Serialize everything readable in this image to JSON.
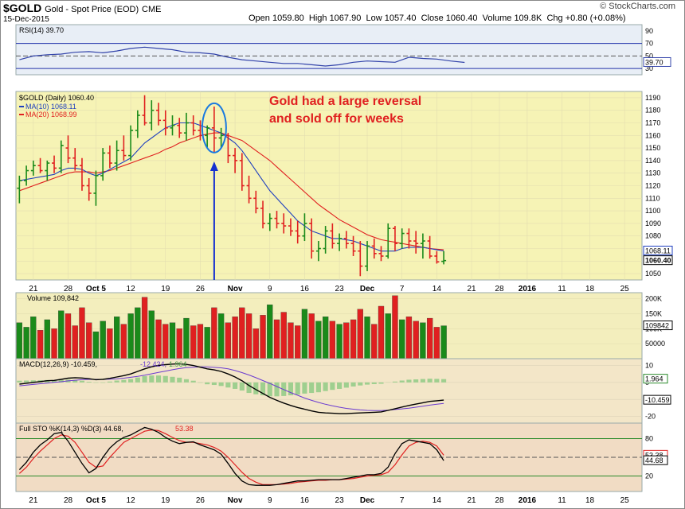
{
  "header": {
    "symbol": "$GOLD",
    "name": "Gold - Spot Price (EOD)",
    "exchange": "CME",
    "date": "15-Dec-2015",
    "brand": "© StockCharts.com",
    "ohlc": [
      {
        "label": "Open",
        "value": "1059.80"
      },
      {
        "label": "High",
        "value": "1067.90"
      },
      {
        "label": "Low",
        "value": "1057.40"
      },
      {
        "label": "Close",
        "value": "1060.40"
      },
      {
        "label": "Volume",
        "value": "109.8K"
      },
      {
        "label": "Chg",
        "value": "+0.80 (+0.08%)"
      }
    ]
  },
  "annotation": {
    "lines": [
      "Gold had a large reversal",
      "and sold off for weeks"
    ],
    "color": "#e02020"
  },
  "colors": {
    "up": "#1a8a1a",
    "down": "#e02020",
    "ma10": "#1f3fbf",
    "ma20": "#e02020",
    "price_bg": "#f6f3b5",
    "volume_bg": "#f3eebd",
    "macd_bg": "#f3e6c8",
    "sto_bg": "#f1dcc4",
    "rsi_bg": "#e8eef6",
    "arrow": "#1530d0"
  },
  "chart_data": [
    {
      "type": "line",
      "panel": "rsi",
      "legend": "RSI(14) 39.70",
      "ylim": [
        20,
        100
      ],
      "ticks": [
        90,
        70,
        50,
        30
      ],
      "last_label": "39.70",
      "x": [
        0,
        2,
        4,
        6,
        8,
        10,
        12,
        14,
        16,
        18,
        20,
        22,
        24,
        26,
        28,
        30,
        32,
        34,
        36,
        38,
        40,
        42,
        44,
        46,
        48,
        50,
        52,
        54,
        56,
        58,
        60,
        62,
        64
      ],
      "values": [
        44,
        50,
        52,
        53,
        56,
        57,
        55,
        58,
        62,
        64,
        62,
        60,
        56,
        55,
        53,
        48,
        44,
        42,
        40,
        38,
        38,
        36,
        34,
        36,
        40,
        42,
        41,
        40,
        48,
        46,
        45,
        42,
        39.7
      ]
    },
    {
      "type": "bar",
      "panel": "price",
      "legend": [
        "$GOLD (Daily) 1060.40",
        "MA(10) 1068.11",
        "MA(20) 1068.99"
      ],
      "ylim": [
        1045,
        1195
      ],
      "ticks": [
        1190,
        1180,
        1170,
        1160,
        1150,
        1140,
        1130,
        1120,
        1110,
        1100,
        1090,
        1080,
        1070,
        1060,
        1050
      ],
      "last_labels": [
        "1068.11",
        "1060.40"
      ],
      "x_ticks": [
        {
          "i": 2,
          "label": "21"
        },
        {
          "i": 7,
          "label": "28"
        },
        {
          "i": 11,
          "label": "Oct 5"
        },
        {
          "i": 16,
          "label": "12"
        },
        {
          "i": 21,
          "label": "19"
        },
        {
          "i": 26,
          "label": "26"
        },
        {
          "i": 31,
          "label": "Nov"
        },
        {
          "i": 36,
          "label": "9"
        },
        {
          "i": 41,
          "label": "16"
        },
        {
          "i": 46,
          "label": "23"
        },
        {
          "i": 50,
          "label": "Dec"
        },
        {
          "i": 55,
          "label": "7"
        },
        {
          "i": 60,
          "label": "14"
        },
        {
          "i": 65,
          "label": "21"
        },
        {
          "i": 69,
          "label": "28"
        },
        {
          "i": 73,
          "label": "2016"
        },
        {
          "i": 78,
          "label": "11"
        },
        {
          "i": 82,
          "label": "18"
        },
        {
          "i": 87,
          "label": "25"
        }
      ],
      "ohlc": [
        [
          1118,
          1128,
          1106,
          1124
        ],
        [
          1124,
          1136,
          1120,
          1132
        ],
        [
          1132,
          1140,
          1128,
          1136
        ],
        [
          1136,
          1142,
          1130,
          1132
        ],
        [
          1132,
          1140,
          1124,
          1138
        ],
        [
          1138,
          1144,
          1130,
          1134
        ],
        [
          1134,
          1156,
          1130,
          1152
        ],
        [
          1150,
          1160,
          1138,
          1142
        ],
        [
          1142,
          1150,
          1132,
          1136
        ],
        [
          1136,
          1142,
          1116,
          1120
        ],
        [
          1120,
          1126,
          1108,
          1114
        ],
        [
          1114,
          1132,
          1104,
          1128
        ],
        [
          1128,
          1150,
          1124,
          1146
        ],
        [
          1146,
          1152,
          1134,
          1138
        ],
        [
          1138,
          1156,
          1132,
          1148
        ],
        [
          1148,
          1160,
          1140,
          1144
        ],
        [
          1144,
          1168,
          1140,
          1164
        ],
        [
          1164,
          1180,
          1158,
          1176
        ],
        [
          1176,
          1192,
          1168,
          1170
        ],
        [
          1170,
          1188,
          1164,
          1180
        ],
        [
          1180,
          1186,
          1168,
          1172
        ],
        [
          1172,
          1180,
          1160,
          1166
        ],
        [
          1166,
          1176,
          1160,
          1168
        ],
        [
          1168,
          1174,
          1158,
          1162
        ],
        [
          1162,
          1178,
          1156,
          1170
        ],
        [
          1170,
          1176,
          1160,
          1164
        ],
        [
          1164,
          1172,
          1156,
          1160
        ],
        [
          1160,
          1168,
          1150,
          1166
        ],
        [
          1166,
          1183,
          1146,
          1158
        ],
        [
          1158,
          1166,
          1150,
          1160
        ],
        [
          1160,
          1162,
          1138,
          1144
        ],
        [
          1144,
          1150,
          1130,
          1140
        ],
        [
          1140,
          1146,
          1116,
          1120
        ],
        [
          1120,
          1128,
          1106,
          1110
        ],
        [
          1110,
          1116,
          1098,
          1102
        ],
        [
          1102,
          1108,
          1086,
          1090
        ],
        [
          1090,
          1098,
          1084,
          1094
        ],
        [
          1094,
          1100,
          1086,
          1090
        ],
        [
          1090,
          1098,
          1082,
          1088
        ],
        [
          1088,
          1094,
          1080,
          1084
        ],
        [
          1084,
          1092,
          1074,
          1080
        ],
        [
          1080,
          1098,
          1076,
          1090
        ],
        [
          1090,
          1094,
          1062,
          1068
        ],
        [
          1068,
          1076,
          1060,
          1070
        ],
        [
          1070,
          1088,
          1066,
          1084
        ],
        [
          1084,
          1090,
          1070,
          1074
        ],
        [
          1074,
          1082,
          1068,
          1078
        ],
        [
          1078,
          1084,
          1070,
          1074
        ],
        [
          1074,
          1080,
          1064,
          1068
        ],
        [
          1068,
          1076,
          1048,
          1056
        ],
        [
          1056,
          1076,
          1052,
          1072
        ],
        [
          1072,
          1078,
          1062,
          1066
        ],
        [
          1066,
          1072,
          1060,
          1064
        ],
        [
          1064,
          1090,
          1062,
          1086
        ],
        [
          1086,
          1088,
          1068,
          1074
        ],
        [
          1074,
          1086,
          1070,
          1082
        ],
        [
          1082,
          1086,
          1070,
          1076
        ],
        [
          1076,
          1084,
          1066,
          1074
        ],
        [
          1074,
          1082,
          1062,
          1076
        ],
        [
          1076,
          1080,
          1062,
          1064
        ],
        [
          1064,
          1068,
          1058,
          1059.4
        ],
        [
          1059.8,
          1067.9,
          1057.4,
          1060.4
        ]
      ],
      "ma10": [
        1124,
        1125,
        1126,
        1127,
        1128,
        1129,
        1132,
        1134,
        1134,
        1133,
        1130,
        1128,
        1130,
        1133,
        1136,
        1139,
        1142,
        1148,
        1154,
        1158,
        1162,
        1166,
        1168,
        1170,
        1170,
        1170,
        1168,
        1166,
        1164,
        1162,
        1158,
        1154,
        1148,
        1140,
        1132,
        1124,
        1116,
        1110,
        1104,
        1098,
        1092,
        1088,
        1084,
        1082,
        1080,
        1078,
        1078,
        1077,
        1076,
        1074,
        1072,
        1070,
        1068,
        1068,
        1068,
        1070,
        1071,
        1071,
        1071,
        1070,
        1069,
        1068.11
      ],
      "ma20": [
        1116,
        1118,
        1120,
        1122,
        1124,
        1126,
        1128,
        1130,
        1131,
        1131,
        1131,
        1130,
        1131,
        1132,
        1134,
        1136,
        1138,
        1140,
        1142,
        1144,
        1146,
        1149,
        1151,
        1154,
        1156,
        1158,
        1160,
        1161,
        1162,
        1162,
        1160,
        1158,
        1156,
        1152,
        1148,
        1144,
        1140,
        1135,
        1130,
        1125,
        1120,
        1115,
        1110,
        1105,
        1101,
        1097,
        1093,
        1090,
        1087,
        1084,
        1081,
        1079,
        1077,
        1076,
        1075,
        1074,
        1073,
        1072,
        1071,
        1070,
        1069.5,
        1068.99
      ],
      "ellipse_index": 28,
      "arrow_index": 28
    },
    {
      "type": "bar",
      "panel": "volume",
      "legend": "Volume 109,842",
      "ylim": [
        0,
        220000
      ],
      "ticks": [
        {
          "v": 200000,
          "label": "200K"
        },
        {
          "v": 150000,
          "label": "150K"
        },
        {
          "v": 100000,
          "label": "100K"
        },
        {
          "v": 50000,
          "label": "50000"
        }
      ],
      "last_label": "109842",
      "values": [
        120000,
        105000,
        140000,
        95000,
        130000,
        100000,
        160000,
        150000,
        110000,
        170000,
        120000,
        90000,
        125000,
        100000,
        140000,
        115000,
        150000,
        170000,
        205000,
        160000,
        130000,
        115000,
        120000,
        100000,
        135000,
        110000,
        115000,
        105000,
        170000,
        150000,
        120000,
        140000,
        170000,
        150000,
        100000,
        145000,
        180000,
        130000,
        155000,
        120000,
        110000,
        165000,
        150000,
        125000,
        140000,
        125000,
        115000,
        120000,
        130000,
        165000,
        140000,
        115000,
        175000,
        150000,
        210000,
        130000,
        140000,
        125000,
        120000,
        135000,
        105000,
        109842
      ]
    },
    {
      "type": "line",
      "panel": "macd",
      "legend": [
        "MACD(12,26,9) -10.459,",
        "-12.424,",
        "1.964"
      ],
      "ylim": [
        -24,
        14
      ],
      "ticks": [
        {
          "v": 10,
          "label": "10"
        },
        {
          "v": 0,
          "label": "0"
        },
        {
          "v": -10,
          "label": "-10"
        },
        {
          "v": -20,
          "label": "-20"
        }
      ],
      "last_labels": [
        "1.964",
        "-10.459"
      ],
      "macd": [
        -1,
        -0.5,
        0,
        0.5,
        1,
        1.2,
        1.8,
        2.5,
        2.8,
        2.6,
        2.2,
        1.6,
        1.8,
        2.4,
        3.2,
        4,
        5,
        6.5,
        8,
        9.2,
        10,
        10.5,
        10.8,
        11,
        10.6,
        10,
        9,
        8,
        7.4,
        6.5,
        5,
        3.2,
        1,
        -1.8,
        -4.2,
        -6.5,
        -8.8,
        -10.6,
        -12.2,
        -13.6,
        -14.8,
        -15.8,
        -16.8,
        -17.6,
        -18,
        -18.2,
        -18.4,
        -18.4,
        -18.2,
        -18,
        -17.8,
        -17.6,
        -17.4,
        -16.5,
        -15.5,
        -14.5,
        -13.6,
        -12.8,
        -12,
        -11.2,
        -10.8,
        -10.459
      ],
      "signal": [
        -2,
        -1.6,
        -1.2,
        -0.8,
        -0.4,
        0,
        0.4,
        0.9,
        1.3,
        1.6,
        1.8,
        1.8,
        1.8,
        1.9,
        2.1,
        2.5,
        3,
        3.6,
        4.3,
        5.1,
        5.9,
        6.7,
        7.5,
        8.2,
        8.7,
        9,
        9.2,
        9.1,
        8.9,
        8.6,
        8,
        7,
        5.8,
        4.4,
        2.8,
        1.1,
        -0.6,
        -2.4,
        -4.2,
        -6,
        -7.6,
        -9.2,
        -10.6,
        -11.8,
        -12.9,
        -13.8,
        -14.6,
        -15.3,
        -15.8,
        -16.2,
        -16.5,
        -16.6,
        -16.6,
        -16.4,
        -16,
        -15.6,
        -15.2,
        -14.6,
        -14,
        -13.4,
        -12.9,
        -12.424
      ]
    },
    {
      "type": "line",
      "panel": "sto",
      "legend": [
        "Full STO %K(14,3) %D(3) 44.68,",
        "53.38"
      ],
      "ylim": [
        -5,
        105
      ],
      "ticks": [
        {
          "v": 80,
          "label": "80"
        },
        {
          "v": 50,
          "label": "50"
        },
        {
          "v": 20,
          "label": "20"
        }
      ],
      "last_labels": [
        "53.38",
        "44.68"
      ],
      "k": [
        30,
        42,
        58,
        70,
        78,
        88,
        90,
        76,
        58,
        40,
        25,
        32,
        50,
        65,
        75,
        82,
        86,
        92,
        98,
        95,
        90,
        82,
        76,
        72,
        74,
        75,
        70,
        66,
        62,
        55,
        40,
        24,
        12,
        6,
        5,
        5,
        5,
        6,
        8,
        10,
        12,
        12,
        13,
        14,
        14,
        14,
        14,
        16,
        18,
        20,
        22,
        22,
        24,
        34,
        56,
        72,
        78,
        76,
        74,
        72,
        62,
        44.68
      ],
      "d": [
        24,
        34,
        48,
        60,
        70,
        80,
        86,
        84,
        74,
        58,
        42,
        34,
        36,
        50,
        62,
        74,
        80,
        86,
        92,
        94,
        93,
        88,
        82,
        77,
        74,
        74,
        72,
        70,
        66,
        60,
        50,
        38,
        26,
        16,
        10,
        6,
        6,
        6,
        7,
        8,
        10,
        11,
        12,
        13,
        13,
        14,
        14,
        15,
        16,
        18,
        20,
        21,
        22,
        26,
        38,
        54,
        68,
        74,
        76,
        74,
        68,
        53.38
      ]
    }
  ]
}
